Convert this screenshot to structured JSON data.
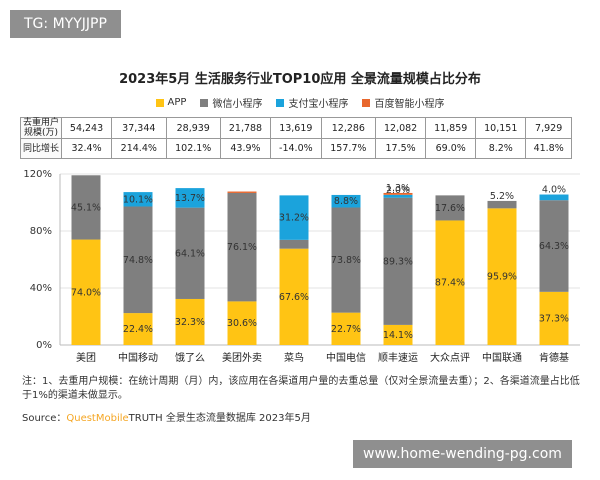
{
  "badge": "TG: MYYJJPP",
  "watermark": "www.home-wending-pg.com",
  "chart_data": {
    "type": "bar",
    "stacked": true,
    "title": "2023年5月 生活服务行业TOP10应用 全景流量规模占比分布",
    "categories": [
      "美团",
      "中国移动",
      "饿了么",
      "美团外卖",
      "菜鸟",
      "中国电信",
      "顺丰速运",
      "大众点评",
      "中国联通",
      "肯德基"
    ],
    "y_ticks": [
      "0%",
      "40%",
      "80%",
      "120%"
    ],
    "ylim": [
      0,
      120
    ],
    "legend_position": "top",
    "series": [
      {
        "name": "APP",
        "color": "#ffc414",
        "values": [
          74.0,
          22.4,
          32.3,
          30.6,
          67.6,
          22.7,
          14.1,
          87.4,
          95.9,
          37.3
        ],
        "labels": [
          "74.0%",
          "22.4%",
          "32.3%",
          "30.6%",
          "67.6%",
          "22.7%",
          "14.1%",
          "87.4%",
          "95.9%",
          "37.3%"
        ]
      },
      {
        "name": "微信小程序",
        "color": "#7f7f7f",
        "values": [
          45.1,
          74.8,
          64.1,
          76.1,
          6.2,
          73.8,
          89.3,
          17.6,
          5.2,
          64.3
        ],
        "labels": [
          "45.1%",
          "74.8%",
          "64.1%",
          "76.1%",
          "6.2%",
          "73.8%",
          "89.3%",
          "17.6%",
          "5.2%",
          "64.3%"
        ]
      },
      {
        "name": "支付宝小程序",
        "color": "#1ba3dc",
        "values": [
          0,
          10.1,
          13.7,
          0,
          31.2,
          8.8,
          2.0,
          0,
          0,
          4.0
        ],
        "labels": [
          "",
          "10.1%",
          "13.7%",
          "",
          "31.2%",
          "8.8%",
          "2.0%",
          "",
          "",
          "4.0%"
        ]
      },
      {
        "name": "百度智能小程序",
        "color": "#e8672d",
        "values": [
          0,
          0,
          0,
          1.0,
          0,
          0,
          1.3,
          0,
          0,
          0
        ],
        "labels": [
          "",
          "",
          "",
          "",
          "",
          "",
          "1.3%",
          "",
          "",
          ""
        ]
      }
    ]
  },
  "table": {
    "rows": [
      {
        "label": "去重用户规模(万)",
        "values": [
          "54,243",
          "37,344",
          "28,939",
          "21,788",
          "13,619",
          "12,286",
          "12,082",
          "11,859",
          "10,151",
          "7,929"
        ]
      },
      {
        "label": "同比增长",
        "values": [
          "32.4%",
          "214.4%",
          "102.1%",
          "43.9%",
          "-14.0%",
          "157.7%",
          "17.5%",
          "69.0%",
          "8.2%",
          "41.8%"
        ]
      }
    ]
  },
  "note": "注：1、去重用户规模：在统计周期（月）内，该应用在各渠道用户量的去重总量（仅对全景流量去重）；2、各渠道流量占比低于1%的渠道未做显示。",
  "source": {
    "prefix": "Source：",
    "brand": "QuestMobile",
    "rest": "TRUTH 全景生态流量数据库 2023年5月"
  }
}
